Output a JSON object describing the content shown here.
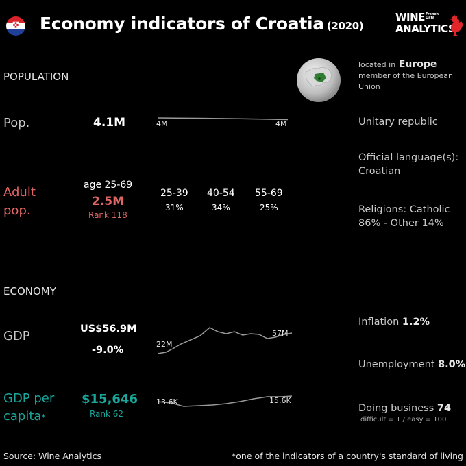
{
  "header": {
    "title": "Economy indicators of Croatia",
    "year": "(2020)",
    "logo_line1": "WINE",
    "logo_line2": "ANALYTICS",
    "logo_french": "French",
    "logo_data": "Data",
    "colors": {
      "accent_red": "#e06666",
      "accent_teal": "#1aa59a",
      "logo_rooster": "#e0262b"
    }
  },
  "population": {
    "section_label": "POPULATION",
    "pop_label": "Pop.",
    "pop_value": "4.1M",
    "spark_start_label": "4M",
    "spark_end_label": "4M",
    "adult_label_1": "Adult",
    "adult_label_2": "pop.",
    "age_range": "age 25-69",
    "adult_value": "2.5M",
    "adult_rank": "Rank 118",
    "age_groups": [
      {
        "label": "25-39",
        "pct": "31%"
      },
      {
        "label": "40-54",
        "pct": "34%"
      },
      {
        "label": "55-69",
        "pct": "25%"
      }
    ]
  },
  "economy": {
    "section_label": "ECONOMY",
    "gdp_label": "GDP",
    "gdp_value": "US$56.9M",
    "gdp_change": "-9.0%",
    "gdp_spark_start": "22M",
    "gdp_spark_end": "57M",
    "gdppc_label_1": "GDP per",
    "gdppc_label_2": "capita",
    "gdppc_asterisk": "*",
    "gdppc_value": "$15,646",
    "gdppc_rank": "Rank 62",
    "gdppc_spark_start": "13.6K",
    "gdppc_spark_end": "15.6K"
  },
  "side": {
    "located_prefix": "located in",
    "located_region": "Europe",
    "member": "member of the European Union",
    "government": "Unitary republic",
    "language_label": "Official language(s):",
    "language": "Croatian",
    "religions": "Religions: Catholic 86% - Other 14%",
    "inflation_label": "Inflation",
    "inflation_value": "1.2%",
    "unemployment_label": "Unemployment",
    "unemployment_value": "8.0%",
    "business_label": "Doing business",
    "business_value": "74",
    "business_note": "difficult = 1 / easy = 100"
  },
  "footer": {
    "source": "Source: Wine  Analytics",
    "note": "*one of the indicators of a country's standard of living"
  }
}
